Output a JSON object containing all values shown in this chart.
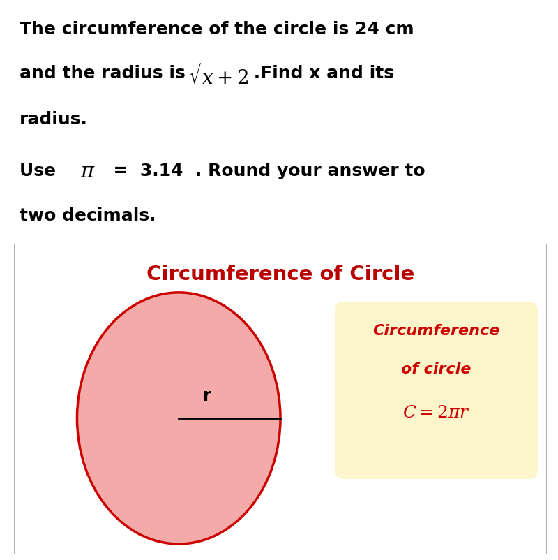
{
  "bg_color": "#ffffff",
  "text_color": "#000000",
  "line1": "The circumference of the circle is 24 cm",
  "line2_pre": "and the radius is ",
  "line2_math": "$\\sqrt{x+2}$",
  "line2_post": " .Find x and its",
  "line3": "radius.",
  "line4_pre": "Use   ",
  "line4_pi": "$\\pi$",
  "line4_post": "  =  3.14  . Round your answer to",
  "line5": "two decimals.",
  "bold_fs": 18,
  "diagram_title": "Circumference of Circle",
  "diagram_title_color": "#bb0000",
  "circle_fill": "#f5aaaa",
  "circle_edge": "#cc0000",
  "circle_lw": 2.5,
  "radius_label": "r",
  "formula_line1": "Circumference",
  "formula_line2": "of circle",
  "formula_line3": "$C = 2\\pi r$",
  "formula_bg": "#fdf5cc",
  "formula_text_color": "#cc0000",
  "box_border_color": "#b0b0b0",
  "diagram_title_fs": 21,
  "formula_fs": 16,
  "formula_math_fs": 18
}
